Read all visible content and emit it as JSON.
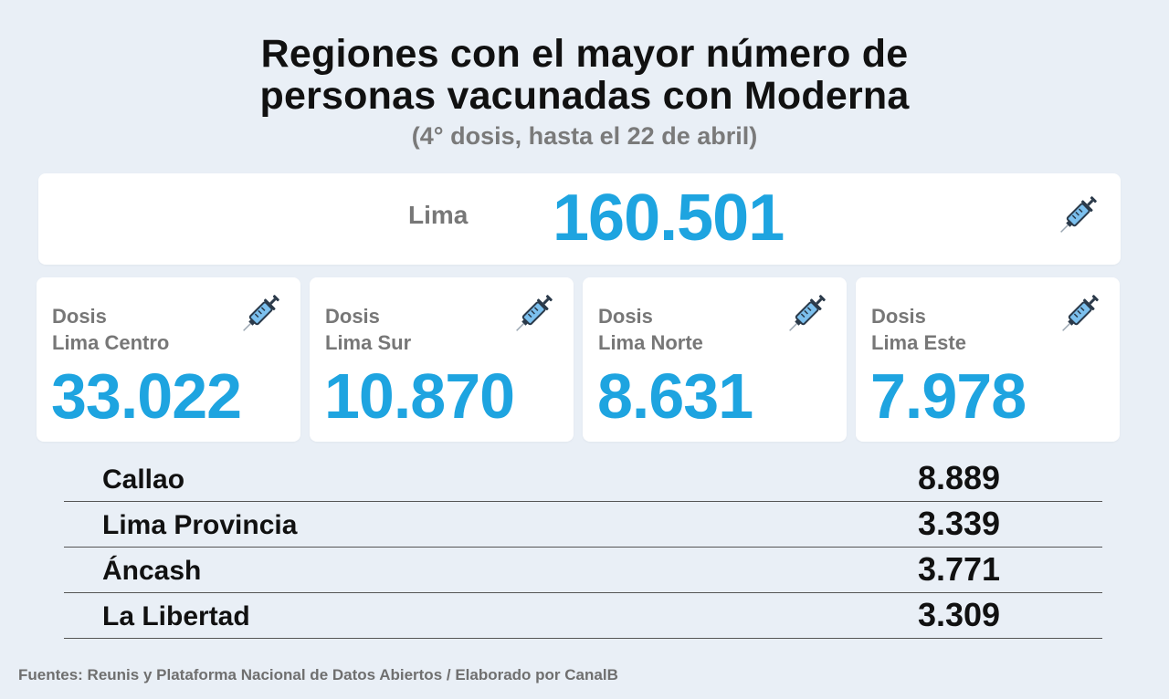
{
  "header": {
    "title_line1": "Regiones con el mayor número de",
    "title_line2": "personas vacunadas con Moderna",
    "subtitle": "(4° dosis, hasta el 22 de abril)"
  },
  "main": {
    "label": "Lima",
    "value": "160.501",
    "icon": "syringe-icon"
  },
  "cards": [
    {
      "line1": "Dosis",
      "line2": "Lima Centro",
      "value": "33.022",
      "icon": "syringe-icon"
    },
    {
      "line1": "Dosis",
      "line2": "Lima Sur",
      "value": "10.870",
      "icon": "syringe-icon"
    },
    {
      "line1": "Dosis",
      "line2": "Lima Norte",
      "value": "8.631",
      "icon": "syringe-icon"
    },
    {
      "line1": "Dosis",
      "line2": "Lima Este",
      "value": "7.978",
      "icon": "syringe-icon"
    }
  ],
  "regions": [
    {
      "name": "Callao",
      "value": "8.889"
    },
    {
      "name": "Lima Provincia",
      "value": "3.339"
    },
    {
      "name": "Áncash",
      "value": "3.771"
    },
    {
      "name": "La Libertad",
      "value": "3.309"
    }
  ],
  "footer": "Fuentes: Reunis y Plataforma Nacional de Datos Abiertos / Elaborado por CanalB",
  "colors": {
    "accent": "#1ea4e0",
    "background": "#e9eff6",
    "label_gray": "#777777"
  }
}
